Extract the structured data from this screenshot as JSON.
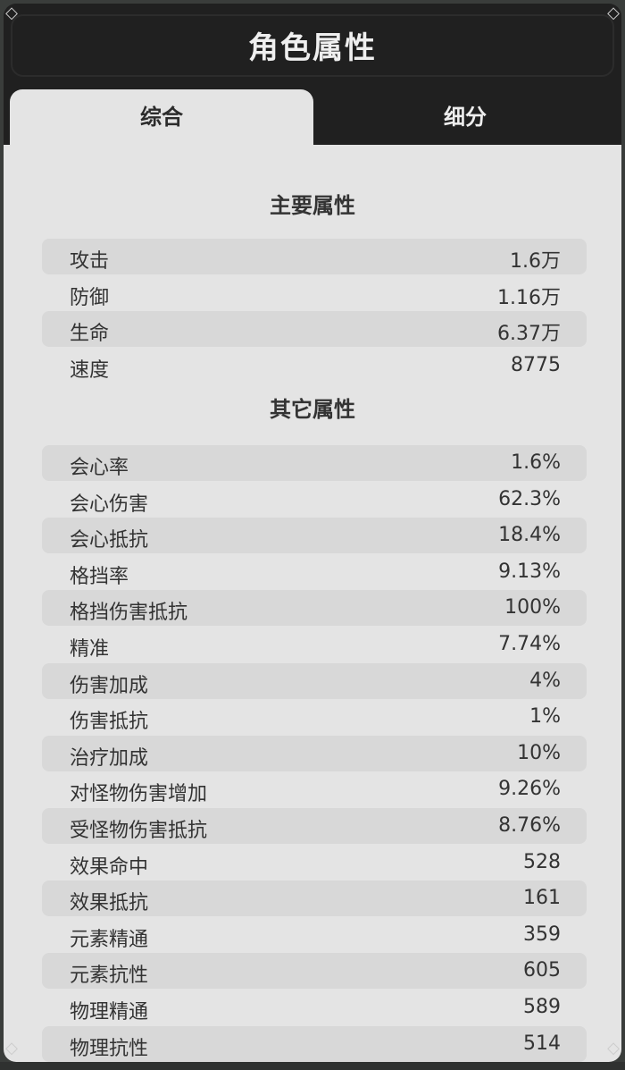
{
  "title": "角色属性",
  "tabs": [
    {
      "label": "综合",
      "active": true
    },
    {
      "label": "细分",
      "active": false
    }
  ],
  "main_section": {
    "title": "主要属性",
    "rows": [
      {
        "label": "攻击",
        "value": "1.6万"
      },
      {
        "label": "防御",
        "value": "1.16万"
      },
      {
        "label": "生命",
        "value": "6.37万"
      },
      {
        "label": "速度",
        "value": "8775"
      }
    ]
  },
  "other_section": {
    "title": "其它属性",
    "rows": [
      {
        "label": "会心率",
        "value": "1.6%"
      },
      {
        "label": "会心伤害",
        "value": "62.3%"
      },
      {
        "label": "会心抵抗",
        "value": "18.4%"
      },
      {
        "label": "格挡率",
        "value": "9.13%"
      },
      {
        "label": "格挡伤害抵抗",
        "value": "100%"
      },
      {
        "label": "精准",
        "value": "7.74%"
      },
      {
        "label": "伤害加成",
        "value": "4%"
      },
      {
        "label": "伤害抵抗",
        "value": "1%"
      },
      {
        "label": "治疗加成",
        "value": "10%"
      },
      {
        "label": "对怪物伤害增加",
        "value": "9.26%"
      },
      {
        "label": "受怪物伤害抵抗",
        "value": "8.76%"
      },
      {
        "label": "效果命中",
        "value": "528"
      },
      {
        "label": "效果抵抗",
        "value": "161"
      },
      {
        "label": "元素精通",
        "value": "359"
      },
      {
        "label": "元素抗性",
        "value": "605"
      },
      {
        "label": "物理精通",
        "value": "589"
      },
      {
        "label": "物理抗性",
        "value": "514"
      }
    ]
  }
}
